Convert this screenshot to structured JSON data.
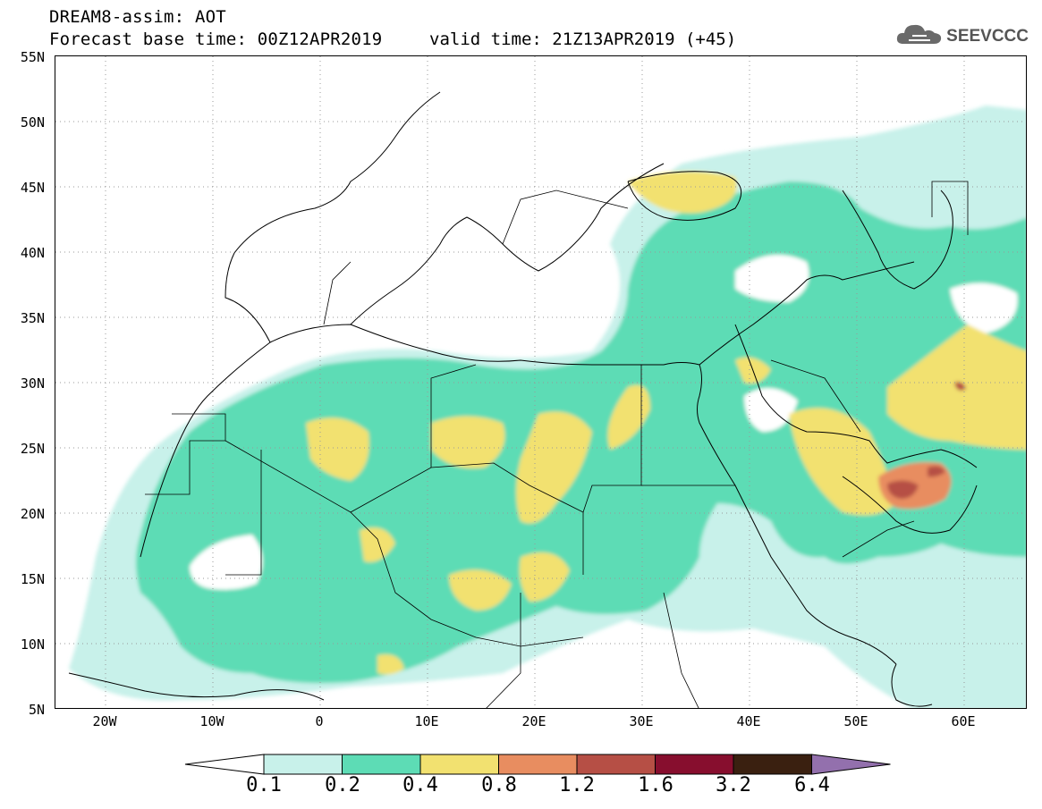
{
  "header": {
    "title_line1": "DREAM8-assim: AOT",
    "title_line2": "Forecast base time: 00Z12APR2019",
    "valid_time": "valid time: 21Z13APR2019 (+45)"
  },
  "logo": {
    "icon": "cloud-icon",
    "text": "SEEVCCC"
  },
  "map": {
    "lon_range": [
      -25,
      65
    ],
    "lat_range": [
      5,
      55
    ],
    "y_labels": [
      "55N",
      "50N",
      "45N",
      "40N",
      "35N",
      "30N",
      "25N",
      "20N",
      "15N",
      "10N",
      "5N"
    ],
    "x_labels": [
      "20W",
      "10W",
      "0",
      "10E",
      "20E",
      "30E",
      "40E",
      "50E",
      "60E"
    ],
    "background": "#ffffff",
    "border_color": "#000000"
  },
  "colorbar": {
    "labels": [
      "0.1",
      "0.2",
      "0.4",
      "0.8",
      "1.2",
      "1.6",
      "3.2",
      "6.4"
    ],
    "colors": [
      "#c8f1ea",
      "#5ddcb5",
      "#f2e170",
      "#e88d60",
      "#b64f45",
      "#870e2e",
      "#3a2010",
      "#9370ad"
    ],
    "under_color": "#ffffff"
  }
}
